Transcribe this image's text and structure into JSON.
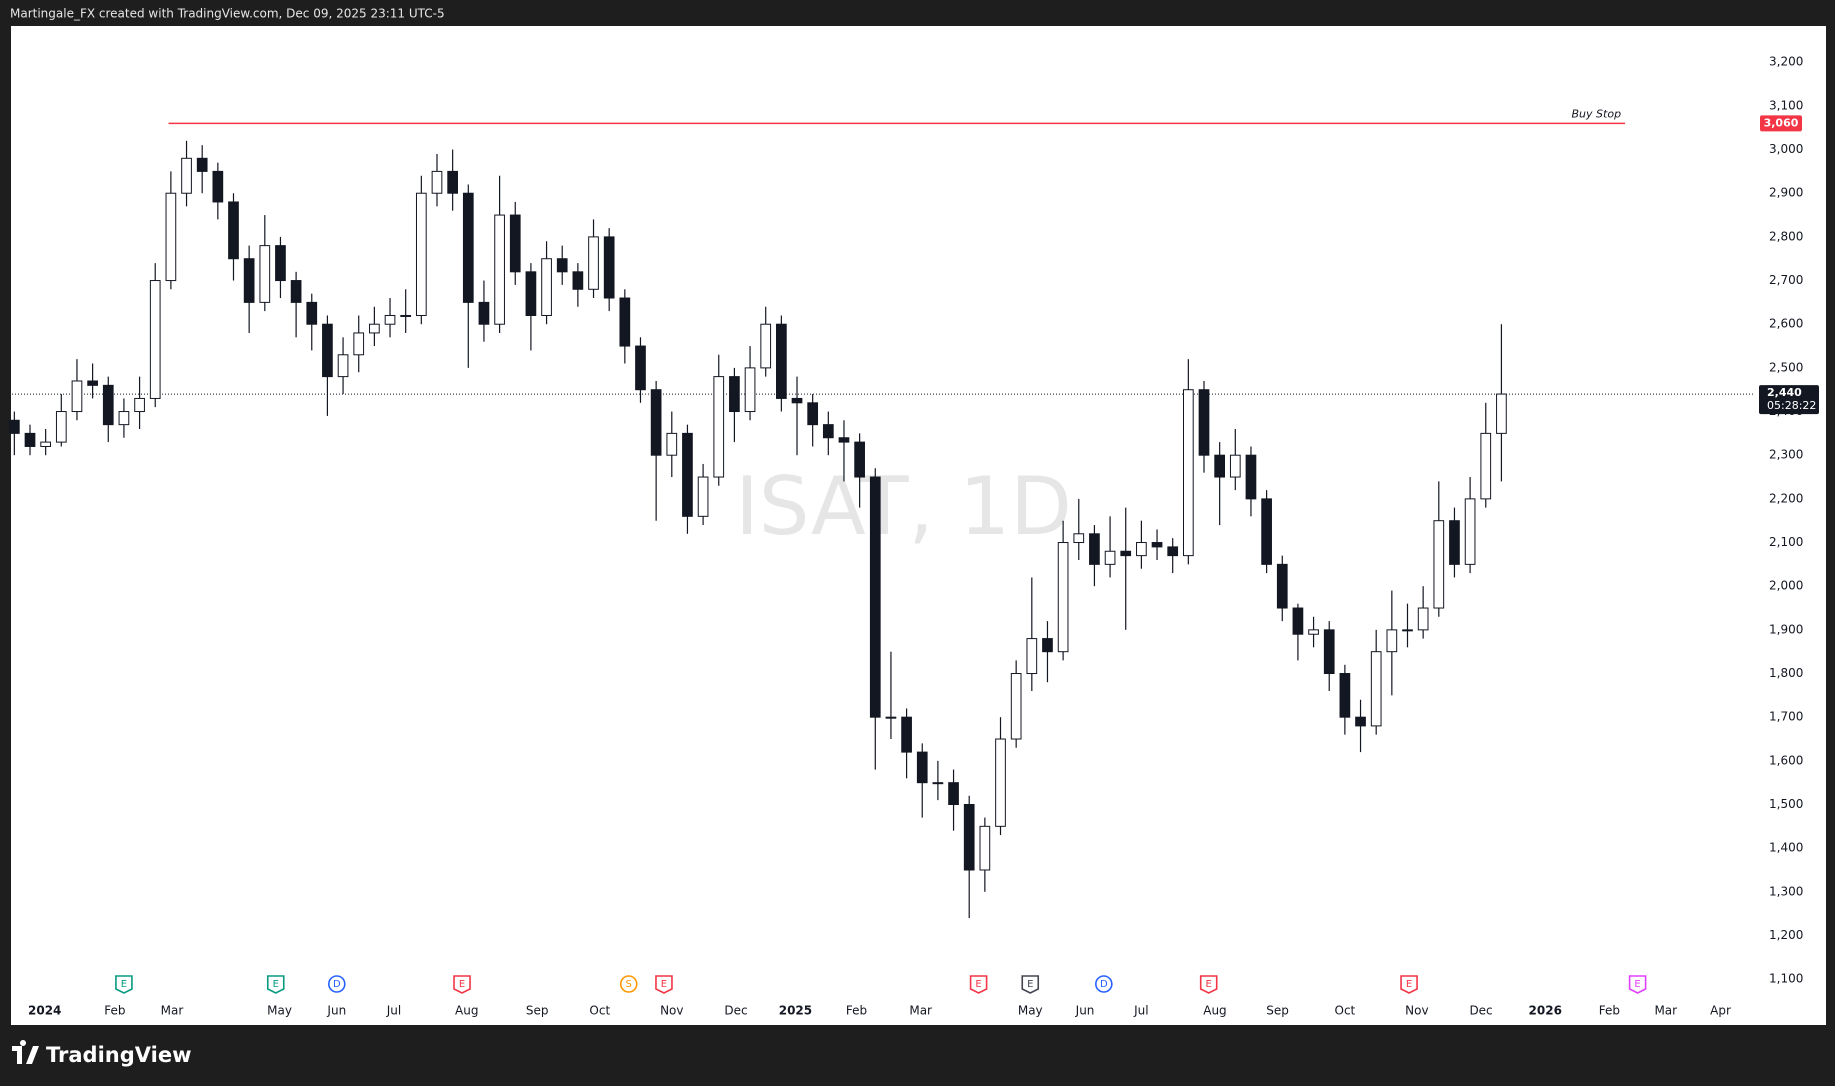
{
  "header": "Martingale_FX created with TradingView.com, Dec 09, 2025 23:11 UTC-5",
  "footer": "TradingView",
  "chart_data": {
    "type": "candlestick",
    "watermark": "ISAT, 1D",
    "up_color": "#ffffff",
    "down_color": "#131722",
    "outline_color": "#131722",
    "grid": false,
    "xlim": [
      -0.15,
      111.2
    ],
    "xticks": [
      {
        "value": 1.94,
        "label": "2024"
      },
      {
        "value": 6.42,
        "label": "Feb"
      },
      {
        "value": 10.07,
        "label": "Mar"
      },
      {
        "value": 16.94,
        "label": "May"
      },
      {
        "value": 20.6,
        "label": "Jun"
      },
      {
        "value": 24.25,
        "label": "Jul"
      },
      {
        "value": 28.9,
        "label": "Aug"
      },
      {
        "value": 33.4,
        "label": "Sep"
      },
      {
        "value": 37.4,
        "label": "Oct"
      },
      {
        "value": 42.0,
        "label": "Nov"
      },
      {
        "value": 46.1,
        "label": "Dec"
      },
      {
        "value": 49.9,
        "label": "2025"
      },
      {
        "value": 53.8,
        "label": "Feb"
      },
      {
        "value": 57.9,
        "label": "Mar"
      },
      {
        "value": 64.9,
        "label": "May"
      },
      {
        "value": 68.4,
        "label": "Jun"
      },
      {
        "value": 72.0,
        "label": "Jul"
      },
      {
        "value": 76.7,
        "label": "Aug"
      },
      {
        "value": 80.7,
        "label": "Sep"
      },
      {
        "value": 85.0,
        "label": "Oct"
      },
      {
        "value": 89.6,
        "label": "Nov"
      },
      {
        "value": 93.7,
        "label": "Dec"
      },
      {
        "value": 97.8,
        "label": "2026"
      },
      {
        "value": 101.9,
        "label": "Feb"
      },
      {
        "value": 105.5,
        "label": "Mar"
      },
      {
        "value": 109.0,
        "label": "Apr"
      }
    ],
    "ylim": [
      995,
      3283
    ],
    "yticks": [
      {
        "value": 1100,
        "label": "1,100"
      },
      {
        "value": 1200,
        "label": "1,200"
      },
      {
        "value": 1300,
        "label": "1,300"
      },
      {
        "value": 1400,
        "label": "1,400"
      },
      {
        "value": 1500,
        "label": "1,500"
      },
      {
        "value": 1600,
        "label": "1,600"
      },
      {
        "value": 1700,
        "label": "1,700"
      },
      {
        "value": 1800,
        "label": "1,800"
      },
      {
        "value": 1900,
        "label": "1,900"
      },
      {
        "value": 2000,
        "label": "2,000"
      },
      {
        "value": 2100,
        "label": "2,100"
      },
      {
        "value": 2200,
        "label": "2,200"
      },
      {
        "value": 2300,
        "label": "2,300"
      },
      {
        "value": 2400,
        "label": "2,400"
      },
      {
        "value": 2500,
        "label": "2,500"
      },
      {
        "value": 2600,
        "label": "2,600"
      },
      {
        "value": 2700,
        "label": "2,700"
      },
      {
        "value": 2800,
        "label": "2,800"
      },
      {
        "value": 2900,
        "label": "2,900"
      },
      {
        "value": 3000,
        "label": "3,000"
      },
      {
        "value": 3100,
        "label": "3,100"
      },
      {
        "value": 3200,
        "label": "3,200"
      }
    ],
    "candles": [
      [
        2380,
        2400,
        2300,
        2350
      ],
      [
        2350,
        2370,
        2300,
        2320
      ],
      [
        2320,
        2360,
        2300,
        2330
      ],
      [
        2330,
        2440,
        2320,
        2400
      ],
      [
        2400,
        2520,
        2380,
        2470
      ],
      [
        2470,
        2510,
        2430,
        2460
      ],
      [
        2460,
        2480,
        2330,
        2370
      ],
      [
        2370,
        2430,
        2340,
        2400
      ],
      [
        2400,
        2480,
        2360,
        2430
      ],
      [
        2430,
        2740,
        2410,
        2700
      ],
      [
        2700,
        2950,
        2680,
        2900
      ],
      [
        2900,
        3020,
        2870,
        2980
      ],
      [
        2980,
        3010,
        2900,
        2950
      ],
      [
        2950,
        2970,
        2840,
        2880
      ],
      [
        2880,
        2900,
        2700,
        2750
      ],
      [
        2750,
        2780,
        2580,
        2650
      ],
      [
        2650,
        2850,
        2630,
        2780
      ],
      [
        2780,
        2800,
        2660,
        2700
      ],
      [
        2700,
        2720,
        2570,
        2650
      ],
      [
        2650,
        2670,
        2540,
        2600
      ],
      [
        2600,
        2620,
        2390,
        2480
      ],
      [
        2480,
        2570,
        2440,
        2530
      ],
      [
        2530,
        2620,
        2490,
        2580
      ],
      [
        2580,
        2640,
        2550,
        2600
      ],
      [
        2600,
        2660,
        2570,
        2620
      ],
      [
        2620,
        2680,
        2580,
        2620
      ],
      [
        2620,
        2940,
        2600,
        2900
      ],
      [
        2900,
        2990,
        2870,
        2950
      ],
      [
        2950,
        3000,
        2860,
        2900
      ],
      [
        2900,
        2920,
        2500,
        2650
      ],
      [
        2650,
        2700,
        2560,
        2600
      ],
      [
        2600,
        2940,
        2580,
        2850
      ],
      [
        2850,
        2880,
        2690,
        2720
      ],
      [
        2720,
        2740,
        2540,
        2620
      ],
      [
        2620,
        2790,
        2600,
        2750
      ],
      [
        2750,
        2780,
        2690,
        2720
      ],
      [
        2720,
        2740,
        2640,
        2680
      ],
      [
        2680,
        2840,
        2660,
        2800
      ],
      [
        2800,
        2820,
        2630,
        2660
      ],
      [
        2660,
        2680,
        2510,
        2550
      ],
      [
        2550,
        2570,
        2420,
        2450
      ],
      [
        2450,
        2470,
        2150,
        2300
      ],
      [
        2300,
        2400,
        2250,
        2350
      ],
      [
        2350,
        2370,
        2120,
        2160
      ],
      [
        2160,
        2280,
        2140,
        2250
      ],
      [
        2250,
        2530,
        2230,
        2480
      ],
      [
        2480,
        2500,
        2330,
        2400
      ],
      [
        2400,
        2550,
        2380,
        2500
      ],
      [
        2500,
        2640,
        2480,
        2600
      ],
      [
        2600,
        2620,
        2400,
        2430
      ],
      [
        2430,
        2480,
        2300,
        2420
      ],
      [
        2420,
        2440,
        2320,
        2370
      ],
      [
        2370,
        2400,
        2300,
        2340
      ],
      [
        2340,
        2380,
        2240,
        2330
      ],
      [
        2330,
        2350,
        2180,
        2250
      ],
      [
        2250,
        2270,
        1580,
        1700
      ],
      [
        1700,
        1850,
        1650,
        1700
      ],
      [
        1700,
        1720,
        1560,
        1620
      ],
      [
        1620,
        1640,
        1470,
        1550
      ],
      [
        1550,
        1600,
        1510,
        1550
      ],
      [
        1550,
        1580,
        1440,
        1500
      ],
      [
        1500,
        1520,
        1240,
        1350
      ],
      [
        1350,
        1470,
        1300,
        1450
      ],
      [
        1450,
        1700,
        1430,
        1650
      ],
      [
        1650,
        1830,
        1630,
        1800
      ],
      [
        1800,
        2020,
        1760,
        1880
      ],
      [
        1880,
        1920,
        1780,
        1850
      ],
      [
        1850,
        2150,
        1830,
        2100
      ],
      [
        2100,
        2200,
        2060,
        2120
      ],
      [
        2120,
        2140,
        2000,
        2050
      ],
      [
        2050,
        2160,
        2020,
        2080
      ],
      [
        2080,
        2180,
        1900,
        2070
      ],
      [
        2070,
        2150,
        2040,
        2100
      ],
      [
        2100,
        2130,
        2060,
        2090
      ],
      [
        2090,
        2110,
        2030,
        2070
      ],
      [
        2070,
        2520,
        2050,
        2450
      ],
      [
        2450,
        2470,
        2260,
        2300
      ],
      [
        2300,
        2330,
        2140,
        2250
      ],
      [
        2250,
        2360,
        2220,
        2300
      ],
      [
        2300,
        2320,
        2160,
        2200
      ],
      [
        2200,
        2220,
        2030,
        2050
      ],
      [
        2050,
        2070,
        1920,
        1950
      ],
      [
        1950,
        1960,
        1830,
        1890
      ],
      [
        1890,
        1930,
        1860,
        1900
      ],
      [
        1900,
        1920,
        1760,
        1800
      ],
      [
        1800,
        1820,
        1660,
        1700
      ],
      [
        1700,
        1740,
        1620,
        1680
      ],
      [
        1680,
        1900,
        1660,
        1850
      ],
      [
        1850,
        1990,
        1750,
        1900
      ],
      [
        1900,
        1960,
        1860,
        1900
      ],
      [
        1900,
        2000,
        1880,
        1950
      ],
      [
        1950,
        2240,
        1930,
        2150
      ],
      [
        2150,
        2180,
        2020,
        2050
      ],
      [
        2050,
        2250,
        2030,
        2200
      ],
      [
        2200,
        2420,
        2180,
        2350
      ],
      [
        2350,
        2600,
        2240,
        2440
      ]
    ],
    "lines": [
      {
        "label": "Buy Stop",
        "value": 3060,
        "value_label": "3,060",
        "x": [
          9.85,
          102.9
        ],
        "color": "#f23645"
      }
    ],
    "last_price": {
      "value": 2440,
      "label": "2,440",
      "countdown": "05:28:22",
      "color": "#131722"
    },
    "events": [
      {
        "x": 7.0,
        "label": "E",
        "shape": "square",
        "color": "#089981"
      },
      {
        "x": 16.7,
        "label": "E",
        "shape": "square",
        "color": "#089981"
      },
      {
        "x": 20.6,
        "label": "D",
        "shape": "circle",
        "color": "#2962ff"
      },
      {
        "x": 28.6,
        "label": "E",
        "shape": "square",
        "color": "#f23645"
      },
      {
        "x": 39.25,
        "label": "S",
        "shape": "circle",
        "color": "#ff9800"
      },
      {
        "x": 41.5,
        "label": "E",
        "shape": "square",
        "color": "#f23645"
      },
      {
        "x": 61.6,
        "label": "E",
        "shape": "square",
        "color": "#f23645"
      },
      {
        "x": 64.9,
        "label": "E",
        "shape": "square",
        "color": "#434651"
      },
      {
        "x": 69.6,
        "label": "D",
        "shape": "circle",
        "color": "#2962ff"
      },
      {
        "x": 76.3,
        "label": "E",
        "shape": "square",
        "color": "#f23645"
      },
      {
        "x": 89.1,
        "label": "E",
        "shape": "square",
        "color": "#f23645"
      },
      {
        "x": 103.7,
        "label": "E",
        "shape": "square",
        "color": "#e040fb"
      }
    ]
  }
}
